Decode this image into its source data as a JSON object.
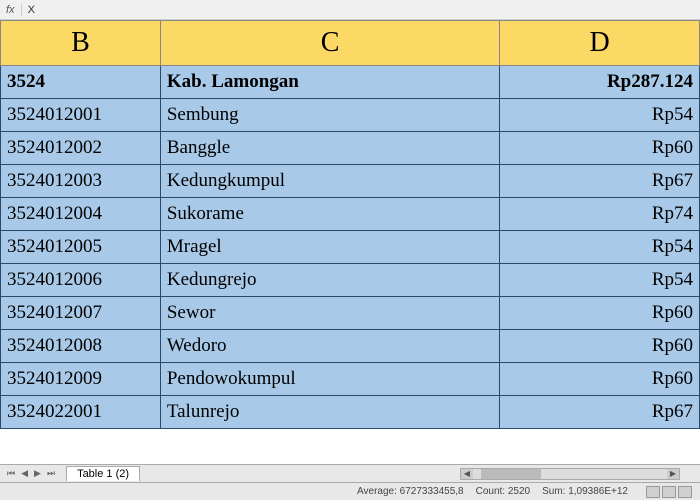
{
  "formula_bar": {
    "fx": "fx",
    "value": "X"
  },
  "columns": {
    "B": "B",
    "C": "C",
    "D": "D"
  },
  "header_row": {
    "b": "3524",
    "c": "Kab.  Lamongan",
    "d": "Rp287.124"
  },
  "rows": [
    {
      "b": "3524012001",
      "c": "Sembung",
      "d": "Rp54"
    },
    {
      "b": "3524012002",
      "c": "Banggle",
      "d": "Rp60"
    },
    {
      "b": "3524012003",
      "c": "Kedungkumpul",
      "d": "Rp67"
    },
    {
      "b": "3524012004",
      "c": "Sukorame",
      "d": "Rp74"
    },
    {
      "b": "3524012005",
      "c": "Mragel",
      "d": "Rp54"
    },
    {
      "b": "3524012006",
      "c": "Kedungrejo",
      "d": "Rp54"
    },
    {
      "b": "3524012007",
      "c": "Sewor",
      "d": "Rp60"
    },
    {
      "b": "3524012008",
      "c": "Wedoro",
      "d": "Rp60"
    },
    {
      "b": "3524012009",
      "c": "Pendowokumpul",
      "d": "Rp60"
    },
    {
      "b": "3524022001",
      "c": "Talunrejo",
      "d": "Rp67"
    }
  ],
  "sheet": {
    "name": "Table 1 (2)"
  },
  "status": {
    "average": "Average: 6727333455,8",
    "count": "Count: 2520",
    "sum": "Sum: 1,09386E+12"
  },
  "colors": {
    "header_bg": "#fcd965",
    "cell_bg": "#a8c9e8",
    "cell_border": "#2a4a6a"
  }
}
